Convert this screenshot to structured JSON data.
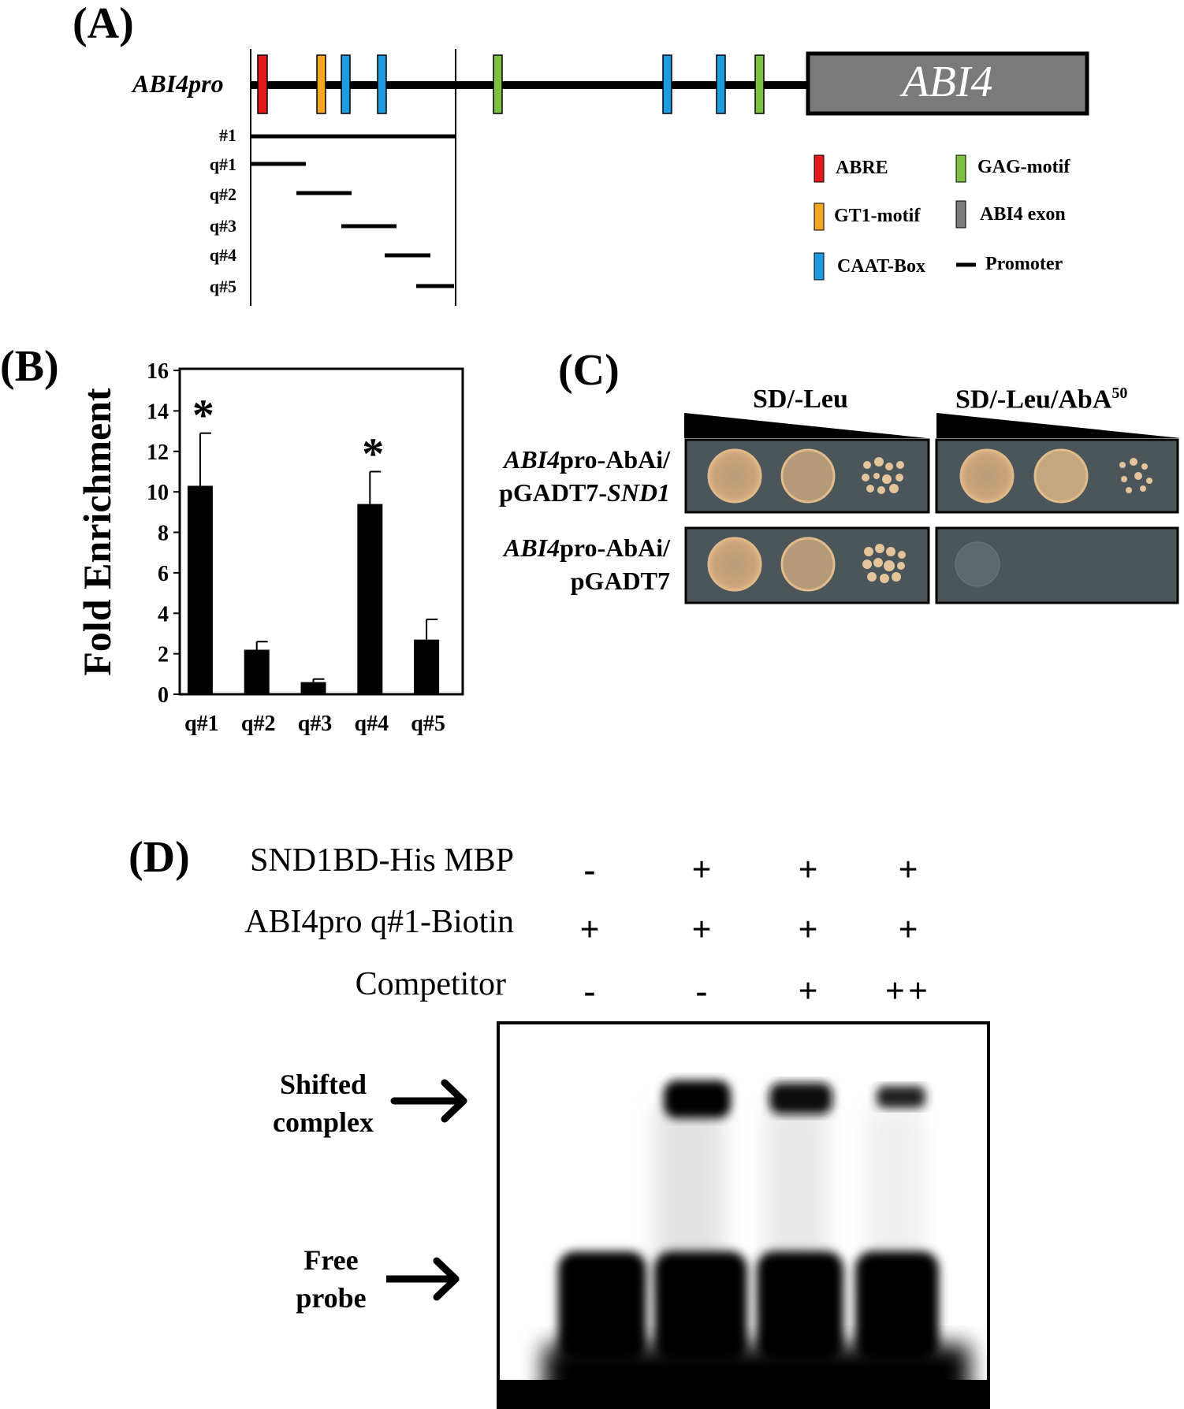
{
  "panelA": {
    "label": "(A)",
    "gene_label": "ABI4pro",
    "exon_label": "ABI4",
    "fragments": [
      "#1",
      "q#1",
      "q#2",
      "q#3",
      "q#4",
      "q#5"
    ],
    "legend": [
      {
        "name": "ABRE",
        "color": "#e31a1c",
        "kind": "box"
      },
      {
        "name": "GAG-motif",
        "color": "#7cc142",
        "kind": "box"
      },
      {
        "name": "GT1-motif",
        "color": "#f5a623",
        "kind": "box"
      },
      {
        "name": "ABI4 exon",
        "color": "#7a7a7a",
        "kind": "box"
      },
      {
        "name": "CAAT-Box",
        "color": "#1e9be0",
        "kind": "box"
      },
      {
        "name": "Promoter",
        "color": "#000000",
        "kind": "line"
      }
    ],
    "colors": {
      "ABRE": "#e31a1c",
      "GT1": "#f5a623",
      "CAAT": "#1e9be0",
      "GAG": "#7cc142",
      "exon": "#7a7a7a"
    }
  },
  "panelB": {
    "label": "(B)",
    "chart_data": {
      "type": "bar",
      "categories": [
        "q#1",
        "q#2",
        "q#3",
        "q#4",
        "q#5"
      ],
      "values": [
        10.3,
        2.2,
        0.6,
        9.4,
        2.7
      ],
      "errors": [
        2.6,
        0.4,
        0.15,
        1.6,
        1.0
      ],
      "significance": [
        "*",
        "",
        "",
        "*",
        ""
      ],
      "ylabel": "Fold Enrichment",
      "xlabel": "",
      "ylim": [
        0,
        16
      ],
      "yticks": [
        "0",
        "2",
        "4",
        "6",
        "8",
        "10",
        "12",
        "14",
        "16"
      ],
      "grid": false,
      "bar_color": "#000000"
    }
  },
  "panelC": {
    "label": "(C)",
    "col1": "SD/-Leu",
    "col2": "SD/-Leu/AbA",
    "col2_sup": "50",
    "row1_line1_italic": "ABI4",
    "row1_line1_rest": "pro-AbAi/",
    "row1_line2_plain": "pGADT7-",
    "row1_line2_italic": "SND1",
    "row2_line1_italic": "ABI4",
    "row2_line1_rest": "pro-AbAi/",
    "row2_line2": "pGADT7"
  },
  "panelD": {
    "label": "(D)",
    "rows": [
      {
        "name": "SND1BD-His MBP",
        "values": [
          "-",
          "+",
          "+",
          "+"
        ]
      },
      {
        "name": "ABI4pro q#1-Biotin",
        "values": [
          "+",
          "+",
          "+",
          "+"
        ]
      },
      {
        "name": "Competitor",
        "values": [
          "-",
          "-",
          "+",
          "++"
        ]
      }
    ],
    "shifted_line1": "Shifted",
    "shifted_line2": "complex",
    "free_line1": "Free",
    "free_line2": "probe"
  }
}
